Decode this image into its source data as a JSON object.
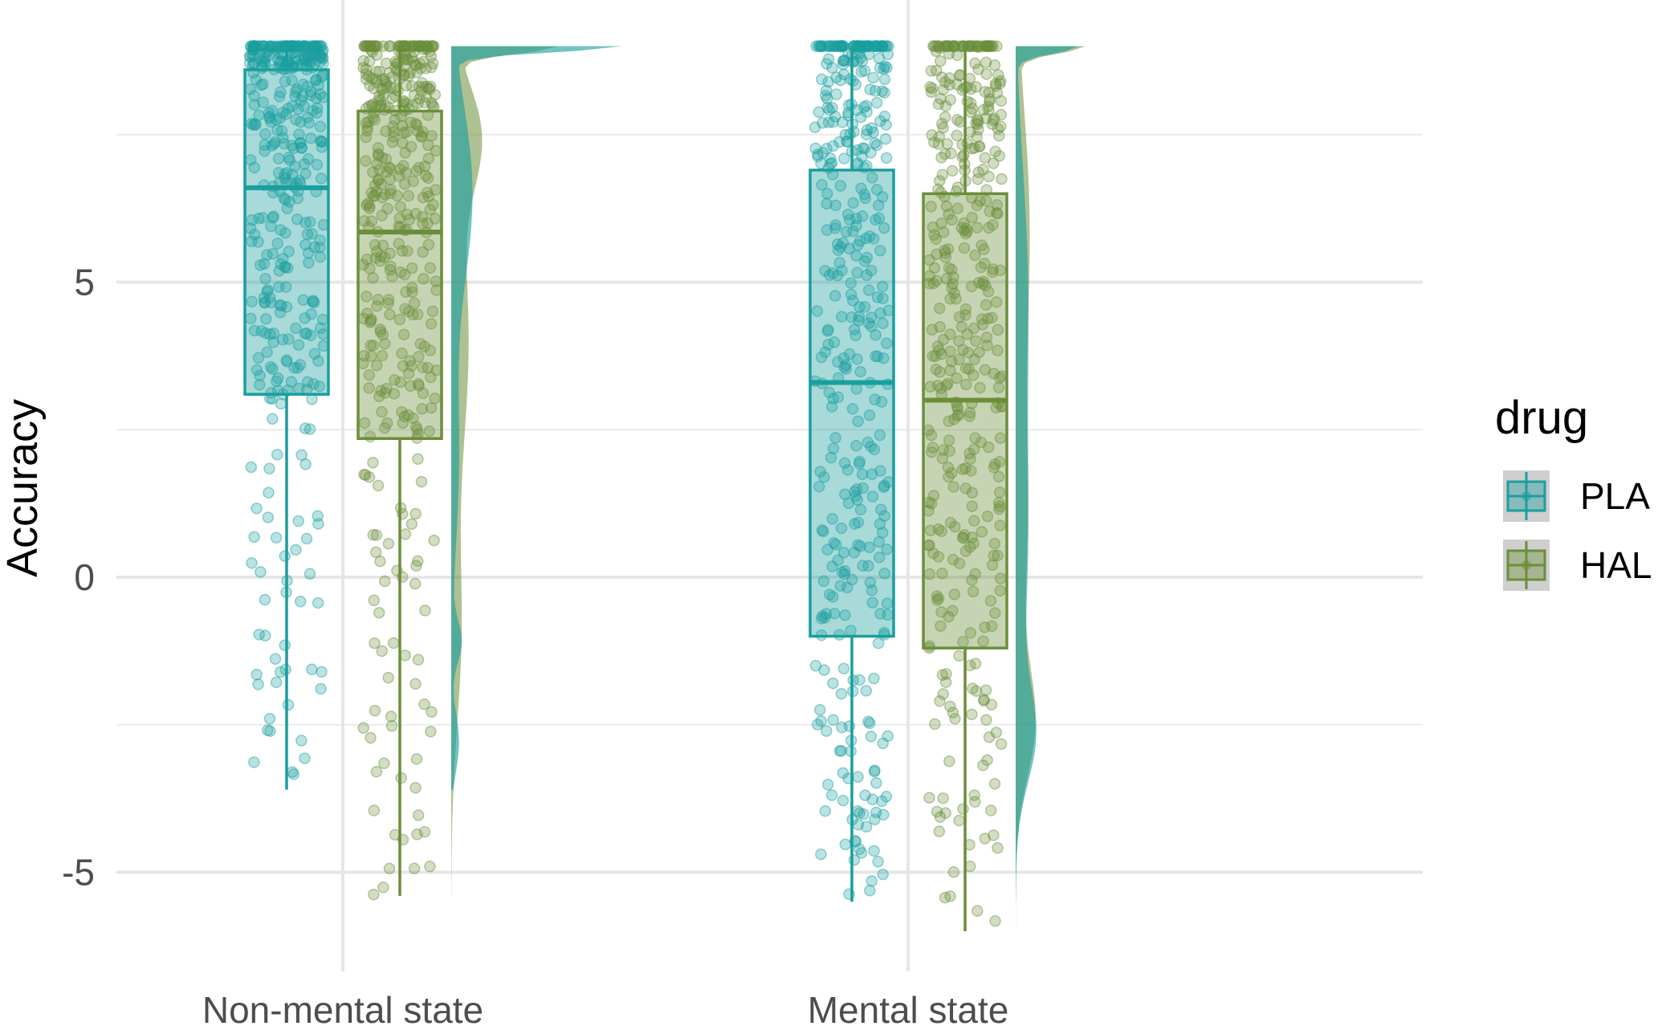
{
  "chart_data": {
    "type": "raincloud",
    "ylabel": "Accuracy",
    "xlabel": "",
    "ylim": [
      -6.5,
      9.3
    ],
    "yticks": [
      -5,
      0,
      5
    ],
    "categories": [
      "Non-mental state",
      "Mental state"
    ],
    "grid": true,
    "legend": {
      "title": "drug",
      "position": "right",
      "entries": [
        "PLA",
        "HAL"
      ]
    },
    "colors": {
      "PLA": "#1b9e9e",
      "HAL": "#6b8e3a",
      "density_overlap": "#3fa389"
    },
    "series": [
      {
        "name": "PLA",
        "boxes": [
          {
            "category": "Non-mental state",
            "min": -3.6,
            "q1": 3.1,
            "median": 6.6,
            "q3": 8.6,
            "max": 9.0
          },
          {
            "category": "Mental state",
            "min": -5.5,
            "q1": -1.0,
            "median": 3.3,
            "q3": 6.9,
            "max": 9.0
          }
        ]
      },
      {
        "name": "HAL",
        "boxes": [
          {
            "category": "Non-mental state",
            "min": -5.4,
            "q1": 2.35,
            "median": 5.85,
            "q3": 7.9,
            "max": 9.0
          },
          {
            "category": "Mental state",
            "min": -6.0,
            "q1": -1.2,
            "median": 3.0,
            "q3": 6.5,
            "max": 9.0
          }
        ]
      }
    ]
  }
}
